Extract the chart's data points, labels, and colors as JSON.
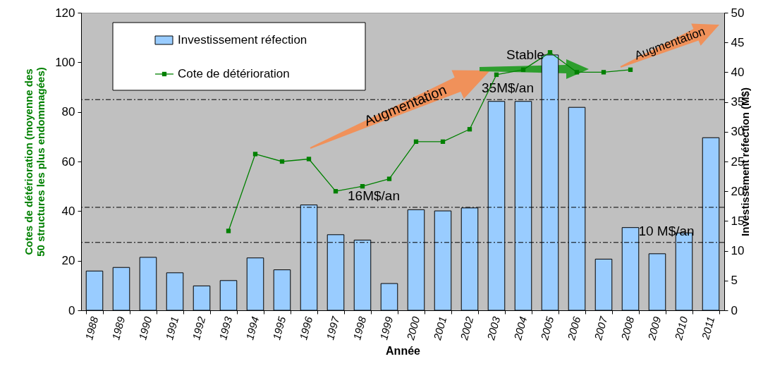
{
  "chart_data": {
    "type": "bar",
    "categories": [
      "1988",
      "1989",
      "1990",
      "1991",
      "1992",
      "1993",
      "1994",
      "1995",
      "1996",
      "1997",
      "1998",
      "1999",
      "2000",
      "2001",
      "2002",
      "2003",
      "2004",
      "2005",
      "2006",
      "2007",
      "2008",
      "2009",
      "2010",
      "2011"
    ],
    "series": [
      {
        "name": "Investissement réfection",
        "axis": "y2",
        "color": "#99ccff",
        "values": [
          6.6,
          7.2,
          8.9,
          6.3,
          4.1,
          5.0,
          8.8,
          6.8,
          17.7,
          12.7,
          11.8,
          4.5,
          16.9,
          16.7,
          17.2,
          35.1,
          35.1,
          42.9,
          34.1,
          8.6,
          13.9,
          9.5,
          13.0,
          29.0
        ]
      },
      {
        "name": "Cote de détérioration",
        "type": "line",
        "color": "#008000",
        "values": [
          null,
          null,
          null,
          null,
          null,
          32,
          63,
          60,
          61,
          48,
          50,
          53,
          68,
          68,
          73,
          95,
          97,
          104,
          96,
          96,
          97,
          null,
          null,
          null
        ]
      }
    ],
    "marker": "square",
    "xlabel": "Année",
    "ylabel": "Cotes de détérioration (moyenne des 50 structures les plus endommagées)",
    "y2label": "Investissement réfection (M$)",
    "ylim": [
      0,
      120
    ],
    "yticks": [
      0,
      20,
      40,
      60,
      80,
      100,
      120
    ],
    "y2lim": [
      0,
      50
    ],
    "y2ticks": [
      0,
      5,
      10,
      15,
      20,
      25,
      30,
      35,
      40,
      45,
      50
    ],
    "ref_lines": [
      {
        "axis": "y2",
        "value": 17.3,
        "label": "16M$/an"
      },
      {
        "axis": "y2",
        "value": 35.4,
        "label": "35M$/an"
      },
      {
        "axis": "y2",
        "value": 11.4,
        "label": "10 M$/an"
      }
    ],
    "annotations": [
      "Augmentation",
      "Stable",
      "Augmentation"
    ],
    "legend": "top left"
  }
}
